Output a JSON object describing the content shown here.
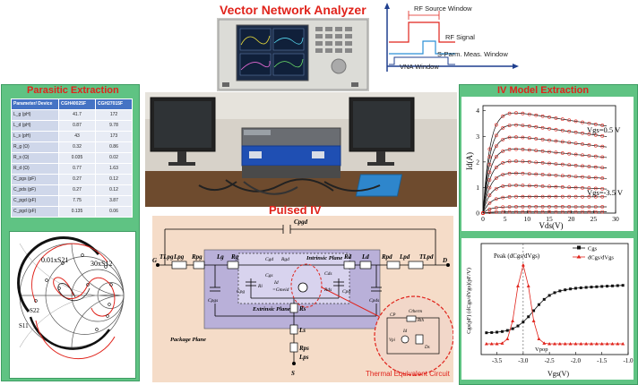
{
  "vna": {
    "title": "Vector Network Analyzer",
    "timing": {
      "rf_source_window": "RF Source Window",
      "rf_signal": "RF Signal",
      "s_param_window": "S-Parm. Meas. Window",
      "vna_window": "VNA Window"
    }
  },
  "parasitic": {
    "title": "Parasitic Extraction",
    "headers": [
      "Parameter/ Device",
      "CGH40025F",
      "CGH27015F"
    ],
    "rows": [
      {
        "name": "L_g (pH)",
        "a": "41.7",
        "b": "172"
      },
      {
        "name": "L_d (pH)",
        "a": "0.87",
        "b": "9.78"
      },
      {
        "name": "L_s (pH)",
        "a": "43",
        "b": "173"
      },
      {
        "name": "R_g (Ω)",
        "a": "0.32",
        "b": "0.86"
      },
      {
        "name": "R_s (Ω)",
        "a": "0.035",
        "b": "0.02"
      },
      {
        "name": "R_d (Ω)",
        "a": "0.77",
        "b": "1.63"
      },
      {
        "name": "C_pgs (pF)",
        "a": "0.27",
        "b": "0.12"
      },
      {
        "name": "C_pds (pF)",
        "a": "0.27",
        "b": "0.12"
      },
      {
        "name": "C_pgd (pF)",
        "a": "7.75",
        "b": "3.87"
      },
      {
        "name": "C_pgd (pF)",
        "a": "0.135",
        "b": "0.06"
      }
    ],
    "smith": {
      "s11": "S11",
      "s22": "S22",
      "s21_label": "0.01xS21",
      "s12_label": "30xS12"
    }
  },
  "iv": {
    "title": "IV Model Extraction",
    "chart_data": {
      "type": "line",
      "xlabel": "Vds(V)",
      "ylabel": "Id(A)",
      "xlim": [
        0,
        30
      ],
      "ylim": [
        0,
        4.2
      ],
      "x_ticks": [
        0,
        5,
        10,
        15,
        20,
        25,
        30
      ],
      "y_ticks": [
        0,
        1,
        2,
        3,
        4
      ],
      "annot_top": "Vgs=0.5 V",
      "annot_bottom": "Vgs=-3.5 V",
      "series_peaks": [
        4.15,
        3.65,
        3.15,
        2.65,
        2.15,
        1.65,
        1.15,
        0.65,
        0.25,
        0.05
      ]
    }
  },
  "pulsed": {
    "title": "Pulsed IV",
    "labels": {
      "g": "G",
      "d": "D",
      "s": "S",
      "cpgd": "Cpgd",
      "tlpg": "TLpg",
      "lpg": "Lpg",
      "rpg": "Rpg",
      "lg": "Lg",
      "rg": "Rg",
      "cpgs": "Cpgs",
      "cpg": "Cpg",
      "cgd": "Cgd",
      "rgd": "Rgd",
      "cgs": "Cgs",
      "ri": "Ri",
      "id": "Id",
      "gm": "=Gmeid",
      "cds": "Cds",
      "rds": "Rds",
      "rd": "Rd",
      "ld": "Ld",
      "cpd": "Cpd",
      "cpds": "Cpds",
      "rpd": "Rpd",
      "lpd": "Lpd",
      "tlpd": "TLpd",
      "rs": "Rs",
      "ls": "Ls",
      "rps": "Rps",
      "lps": "Lps",
      "intrinsic": "Intrinsic Plane",
      "extrinsic": "Extrinsic Plane",
      "package": "Package Plane",
      "thermal": "Thermal Equivalent Circuit",
      "cp": "CP",
      "ctherm": "Ctherm",
      "rth": "Rth",
      "vpi": "Vpi",
      "id2": "Id",
      "ds": "Ds"
    }
  },
  "cgs": {
    "chart_data": {
      "type": "line",
      "xlabel": "Vgs(V)",
      "ylabel": "Cgs(pF) (dCgs/dVgs)(pF/V)",
      "xlim": [
        -3.8,
        -1.0
      ],
      "x_ticks": [
        -3.5,
        -3.0,
        -2.5,
        -2.0,
        -1.5,
        -1.0
      ],
      "peak_label": "Peak (dCgs/dVgs)",
      "vpop_label": "Vpop",
      "legend": [
        "Cgs",
        "dCgs/dVgs"
      ],
      "legend_position": "top-right"
    }
  },
  "colors": {
    "green": "#5fc383",
    "red": "#e0231b",
    "tan": "#f5dcc8",
    "purple": "#b9b0d9"
  }
}
